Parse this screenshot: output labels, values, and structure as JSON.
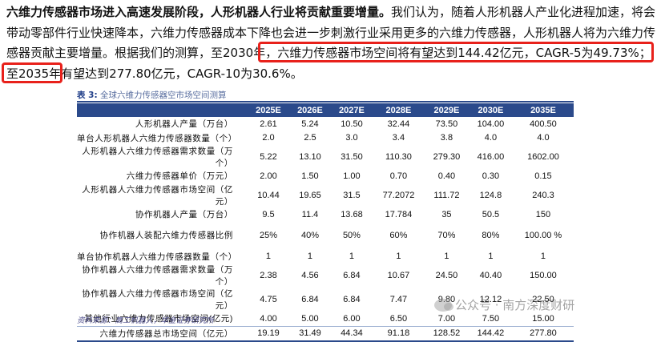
{
  "paragraph": {
    "lead": "六维力传感器市场进入高速发展阶段，人形机器人行业将贡献重要增量。",
    "body": "我们认为，随着人形机器人产业化进程加速，将会带动零部件行业快速降本，六维力传感器成本下降也会进一步刺激行业采用更多的六维力传感器，人形机器人将为六维力传感器贡献主要增量。根据我们的测算，",
    "highlight": "至2030年，六维力传感器市场空间将有望达到144.42亿元，CAGR-5为49.73%；",
    "tail": "至2035年有望达到277.80亿元，CAGR-10为30.6%。"
  },
  "table": {
    "title_prefix": "表 3:",
    "title": "全球六维力传感器空市场空间测算",
    "headers": [
      "",
      "2025E",
      "2026E",
      "2027E",
      "2028E",
      "2029E",
      "2030E",
      "2035E"
    ],
    "rows": [
      {
        "label": "人形机器人产量（万台）",
        "values": [
          "2.61",
          "5.24",
          "10.50",
          "32.44",
          "73.50",
          "104.00",
          "400.50"
        ]
      },
      {
        "label": "单台人形机器人六维力传感器数量（个）",
        "values": [
          "2.0",
          "2.5",
          "3.0",
          "3.4",
          "3.8",
          "4.0",
          "4.0"
        ]
      },
      {
        "label": "人形机器人六维力传感器需求数量（万个）",
        "values": [
          "5.22",
          "13.10",
          "31.50",
          "110.30",
          "279.30",
          "416.00",
          "1602.00"
        ]
      },
      {
        "label": "六维力传感器单价（万元）",
        "values": [
          "2.00",
          "1.50",
          "1.00",
          "0.70",
          "0.40",
          "0.30",
          "0.15"
        ]
      },
      {
        "label": "人形机器人六维力传感器市场空间（亿元）",
        "values": [
          "10.44",
          "19.65",
          "31.5",
          "77.2072",
          "111.72",
          "124.8",
          "240.3"
        ]
      },
      {
        "label": "协作机器人产量（万台）",
        "values": [
          "9.5",
          "11.4",
          "13.68",
          "17.784",
          "35",
          "50.5",
          "150"
        ]
      },
      {
        "label": "协作机器人装配六维力传感器比例",
        "values": [
          "25%",
          "40%",
          "50%",
          "60%",
          "70%",
          "80%",
          "100.00 %"
        ]
      },
      {
        "label": "单台协作机器人六维力传感器数量（个）",
        "values": [
          "1",
          "1",
          "1",
          "1",
          "1",
          "1",
          "1"
        ]
      },
      {
        "label": "协作机器人六维力传感器需求数量（万个）",
        "values": [
          "2.38",
          "4.56",
          "6.84",
          "10.67",
          "24.50",
          "40.40",
          "150.00"
        ]
      },
      {
        "label": "协作机器人六维力传感器市场空间（亿元）",
        "values": [
          "4.75",
          "6.84",
          "6.84",
          "7.47",
          "9.80",
          "12.12",
          "22.50"
        ]
      },
      {
        "label": "其他行业六维力传感器市场空间(亿元)",
        "values": [
          "4.00",
          "5.00",
          "6.00",
          "6.50",
          "7.00",
          "7.50",
          "15.00"
        ]
      },
      {
        "label": "六维力传感器总市场空间（亿元）",
        "values": [
          "19.19",
          "31.49",
          "44.34",
          "91.18",
          "128.52",
          "144.42",
          "277.80"
        ]
      }
    ]
  },
  "source": "资料来源：高工机器人，华金证券研究所",
  "watermark": "公众号 · 南方深度财研"
}
